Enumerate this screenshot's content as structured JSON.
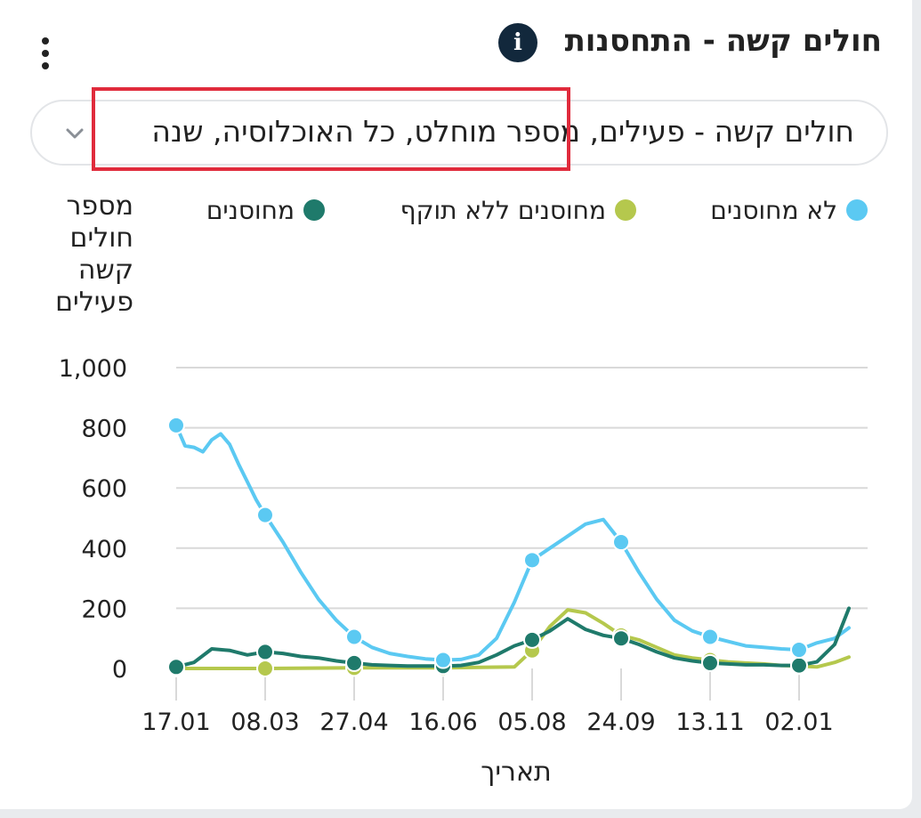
{
  "header": {
    "title": "חולים קשה - התחסנות"
  },
  "selector": {
    "value": "חולים קשה - פעילים, מספר מוחלט, כל האוכלוסיה, שנה"
  },
  "colors": {
    "unvaccinated": "#5bc9f2",
    "expired": "#b5c84d",
    "vaccinated": "#1f7a6b",
    "grid": "#d9d9d9",
    "highlight": "#e02b3c"
  },
  "chart_data": {
    "type": "line",
    "ylabel": "מספר חולים קשה פעילים",
    "xlabel": "תאריך",
    "ylim": [
      0,
      1000
    ],
    "yticks": [
      "0",
      "200",
      "400",
      "600",
      "800",
      "1,000"
    ],
    "x_ticks": [
      "17.01",
      "08.03",
      "27.04",
      "16.06",
      "05.08",
      "24.09",
      "13.11",
      "02.01"
    ],
    "legend_position": "top",
    "series": [
      {
        "name": "לא מחוסנים",
        "color_key": "unvaccinated",
        "x": [
          0,
          5,
          10,
          15,
          20,
          25,
          30,
          35,
          40,
          45,
          50,
          60,
          70,
          80,
          90,
          100,
          110,
          120,
          130,
          140,
          150,
          160,
          170,
          180,
          190,
          200,
          210,
          220,
          230,
          240,
          250,
          260,
          270,
          280,
          290,
          300,
          310,
          320,
          330,
          340,
          350,
          360,
          370,
          378
        ],
        "y": [
          808,
          740,
          735,
          720,
          760,
          780,
          745,
          680,
          620,
          560,
          510,
          420,
          320,
          230,
          160,
          105,
          70,
          50,
          40,
          32,
          28,
          30,
          45,
          100,
          220,
          360,
          400,
          440,
          480,
          495,
          420,
          320,
          230,
          160,
          125,
          105,
          90,
          75,
          70,
          65,
          62,
          85,
          100,
          135
        ]
      },
      {
        "name": "מחוסנים ללא תוקף",
        "color_key": "expired",
        "x": [
          0,
          50,
          100,
          150,
          190,
          200,
          210,
          220,
          230,
          240,
          250,
          260,
          270,
          280,
          290,
          300,
          310,
          320,
          330,
          340,
          350,
          360,
          370,
          378
        ],
        "y": [
          0,
          0,
          2,
          2,
          5,
          60,
          140,
          195,
          185,
          150,
          110,
          95,
          70,
          45,
          35,
          28,
          22,
          18,
          15,
          10,
          8,
          5,
          20,
          38
        ]
      },
      {
        "name": "מחוסנים",
        "color_key": "vaccinated",
        "x": [
          0,
          10,
          20,
          30,
          40,
          50,
          60,
          70,
          80,
          90,
          100,
          110,
          120,
          130,
          140,
          150,
          160,
          170,
          180,
          190,
          200,
          210,
          220,
          230,
          240,
          250,
          260,
          270,
          280,
          290,
          300,
          310,
          320,
          330,
          340,
          350,
          360,
          370,
          378
        ],
        "y": [
          5,
          20,
          65,
          60,
          45,
          55,
          50,
          40,
          35,
          25,
          18,
          12,
          10,
          8,
          8,
          8,
          10,
          20,
          45,
          75,
          95,
          125,
          165,
          130,
          110,
          100,
          80,
          55,
          35,
          25,
          18,
          15,
          12,
          12,
          10,
          10,
          22,
          80,
          200
        ]
      }
    ]
  }
}
